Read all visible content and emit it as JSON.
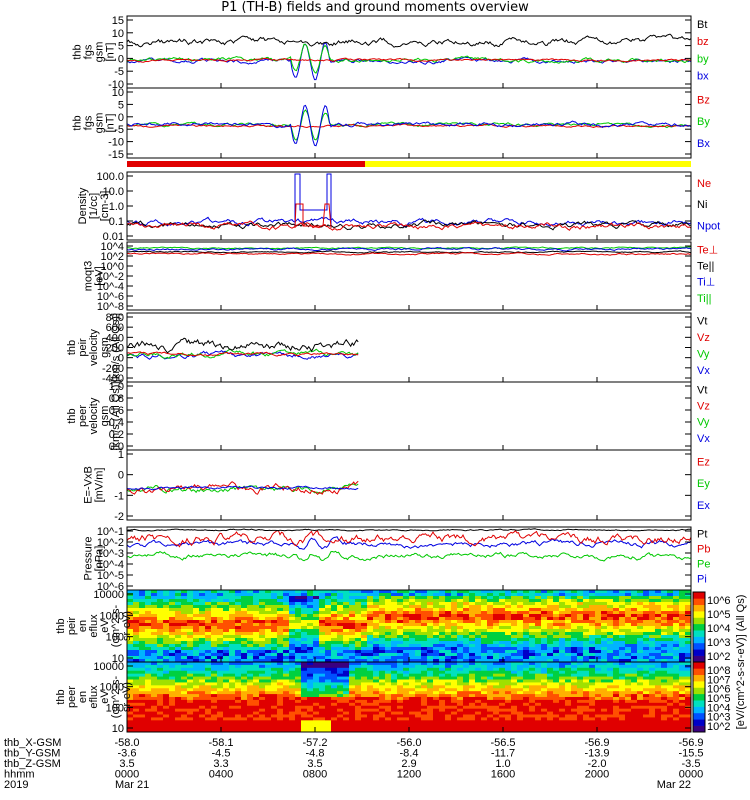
{
  "title": "P1 (TH-B) fields and ground moments overview",
  "colors": {
    "black": "#000000",
    "red": "#e00000",
    "green": "#00c800",
    "blue": "#0000e0",
    "yellow": "#ffff00"
  },
  "chart_data": [
    {
      "type": "line",
      "ylabel": [
        "thb",
        "fgs",
        "gsm",
        "[nT]"
      ],
      "ylim": [
        -10,
        15
      ],
      "yticks": [
        "15",
        "10",
        "5",
        "0",
        "-5",
        "-10"
      ],
      "series": [
        {
          "name": "Bt",
          "color": "black"
        },
        {
          "name": "bz",
          "color": "red"
        },
        {
          "name": "by",
          "color": "green"
        },
        {
          "name": "bx",
          "color": "blue"
        }
      ]
    },
    {
      "type": "line",
      "ylabel": [
        "thb",
        "fgs",
        "gsm",
        "[nT]"
      ],
      "ylim": [
        -18,
        10
      ],
      "yticks": [
        "10",
        "5",
        "0",
        "-5",
        "-10",
        "-15"
      ],
      "series": [
        {
          "name": "Bz",
          "color": "red"
        },
        {
          "name": "By",
          "color": "green"
        },
        {
          "name": "Bx",
          "color": "blue"
        }
      ]
    },
    {
      "type": "line",
      "ylabel": [
        "Density",
        "[1/cc]",
        "[cm-3]"
      ],
      "scale": "log",
      "yticks": [
        "100.0",
        "10.0",
        "1.0",
        "0.1",
        "0.01"
      ],
      "series": [
        {
          "name": "Ne",
          "color": "red"
        },
        {
          "name": "Ni",
          "color": "black"
        },
        {
          "name": "Npot",
          "color": "blue"
        }
      ]
    },
    {
      "type": "line",
      "ylabel": [
        "moqt3",
        "[eV]"
      ],
      "scale": "log",
      "yticks": [
        "10^4",
        "10^2",
        "10^0",
        "10^-2",
        "10^-4",
        "10^-6",
        "10^-8"
      ],
      "series": [
        {
          "name": "Te⊥",
          "color": "red"
        },
        {
          "name": "Te||",
          "color": "black"
        },
        {
          "name": "Ti⊥",
          "color": "blue"
        },
        {
          "name": "Ti||",
          "color": "green"
        }
      ]
    },
    {
      "type": "line",
      "ylabel": [
        "thb",
        "peir",
        "velocity",
        "gsm",
        "[km/s (All Qs)]"
      ],
      "ylim": [
        -400,
        800
      ],
      "yticks": [
        "800",
        "600",
        "400",
        "200",
        "0",
        "-200",
        "-400"
      ],
      "series": [
        {
          "name": "Vt",
          "color": "black"
        },
        {
          "name": "Vz",
          "color": "red"
        },
        {
          "name": "Vy",
          "color": "green"
        },
        {
          "name": "Vx",
          "color": "blue"
        }
      ]
    },
    {
      "type": "line",
      "ylabel": [
        "thb",
        "peer",
        "velocity",
        "gsm",
        "[km/s (All Qs)]"
      ],
      "ylim": [
        0,
        1
      ],
      "yticks": [
        "1.0",
        "0.8",
        "0.6",
        "0.4",
        "0.2",
        "0.0"
      ],
      "series": [
        {
          "name": "Vt",
          "color": "black"
        },
        {
          "name": "Vz",
          "color": "red"
        },
        {
          "name": "Vy",
          "color": "green"
        },
        {
          "name": "Vx",
          "color": "blue"
        }
      ]
    },
    {
      "type": "line",
      "ylabel": [
        "E=-VxB",
        "[mV/m]"
      ],
      "ylim": [
        -2,
        1
      ],
      "yticks": [
        "1",
        "0",
        "-1",
        "-2"
      ],
      "series": [
        {
          "name": "Ez",
          "color": "red"
        },
        {
          "name": "Ey",
          "color": "green"
        },
        {
          "name": "Ex",
          "color": "blue"
        }
      ]
    },
    {
      "type": "line",
      "ylabel": [
        "Pressure",
        "[nPa]"
      ],
      "scale": "log",
      "yticks": [
        "10^-1",
        "10^-2",
        "10^-3",
        "10^-4",
        "10^-5",
        "10^-6"
      ],
      "series": [
        {
          "name": "Pt",
          "color": "black"
        },
        {
          "name": "Pb",
          "color": "red"
        },
        {
          "name": "Pe",
          "color": "green"
        },
        {
          "name": "Pi",
          "color": "blue"
        }
      ]
    },
    {
      "type": "heatmap",
      "ylabel": [
        "thb",
        "peir",
        "en",
        "eflux",
        "eV",
        "(cm^2-s-",
        "sr-eV)"
      ],
      "scale": "log",
      "yticks": [
        "10000",
        "1000",
        "100",
        "10"
      ],
      "colorbar_ticks": [
        "10^6",
        "10^5",
        "10^4",
        "10^3",
        "10^2"
      ]
    },
    {
      "type": "heatmap",
      "ylabel": [
        "thb",
        "peer",
        "en",
        "eflux",
        "eV",
        "(cm^2-s-",
        "sr-eV)"
      ],
      "scale": "log",
      "yticks": [
        "10000",
        "1000",
        "100",
        "10"
      ],
      "colorbar_ticks": [
        "10^8",
        "10^7",
        "10^6",
        "10^5",
        "10^4",
        "10^3",
        "10^2"
      ]
    }
  ],
  "colorbar_label": "[eV/(cm^2-s-sr-eV)] (All Qs)",
  "footer": {
    "rows": [
      {
        "label": "thb_X-GSM",
        "values": [
          "-58.0",
          "-58.1",
          "-57.2",
          "-56.0",
          "-56.5",
          "-56.9",
          "-56.9"
        ]
      },
      {
        "label": "thb_Y-GSM",
        "values": [
          "-3.6",
          "-4.5",
          "-4.8",
          "-8.4",
          "-11.7",
          "-13.9",
          "-15.5"
        ]
      },
      {
        "label": "thb_Z-GSM",
        "values": [
          "3.5",
          "3.3",
          "3.5",
          "2.9",
          "1.0",
          "-2.0",
          "-3.5"
        ]
      },
      {
        "label": "hhmm",
        "values": [
          "0000",
          "0400",
          "0800",
          "1200",
          "1600",
          "2000",
          "0000"
        ]
      },
      {
        "label": "2019",
        "values": [
          "Mar 21",
          "",
          "",
          "",
          "",
          "",
          "Mar 22"
        ]
      }
    ]
  }
}
